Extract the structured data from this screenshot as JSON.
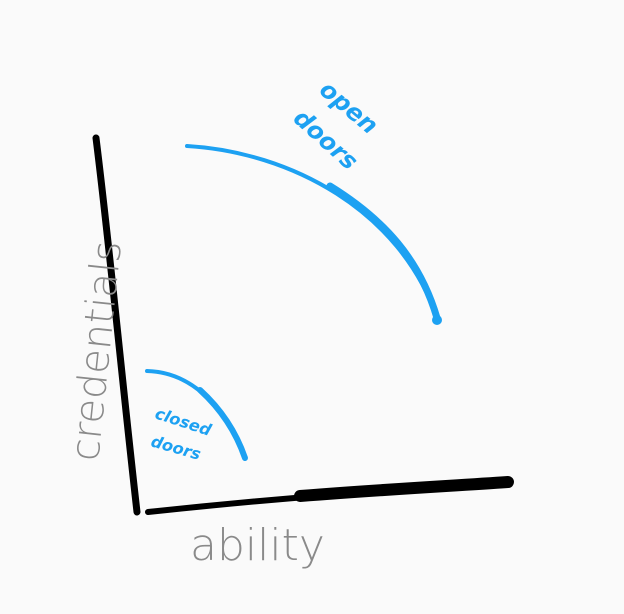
{
  "axes": {
    "x_label": "ability",
    "y_label": "credentials"
  },
  "curves": {
    "open": {
      "label_line1": "open",
      "label_line2": "doors"
    },
    "closed": {
      "label_line1": "closed",
      "label_line2": "doors"
    }
  },
  "colors": {
    "background": "#fafafa",
    "axis": "#000000",
    "axis_text": "#8a8a8a",
    "curve": "#1da1f2"
  }
}
